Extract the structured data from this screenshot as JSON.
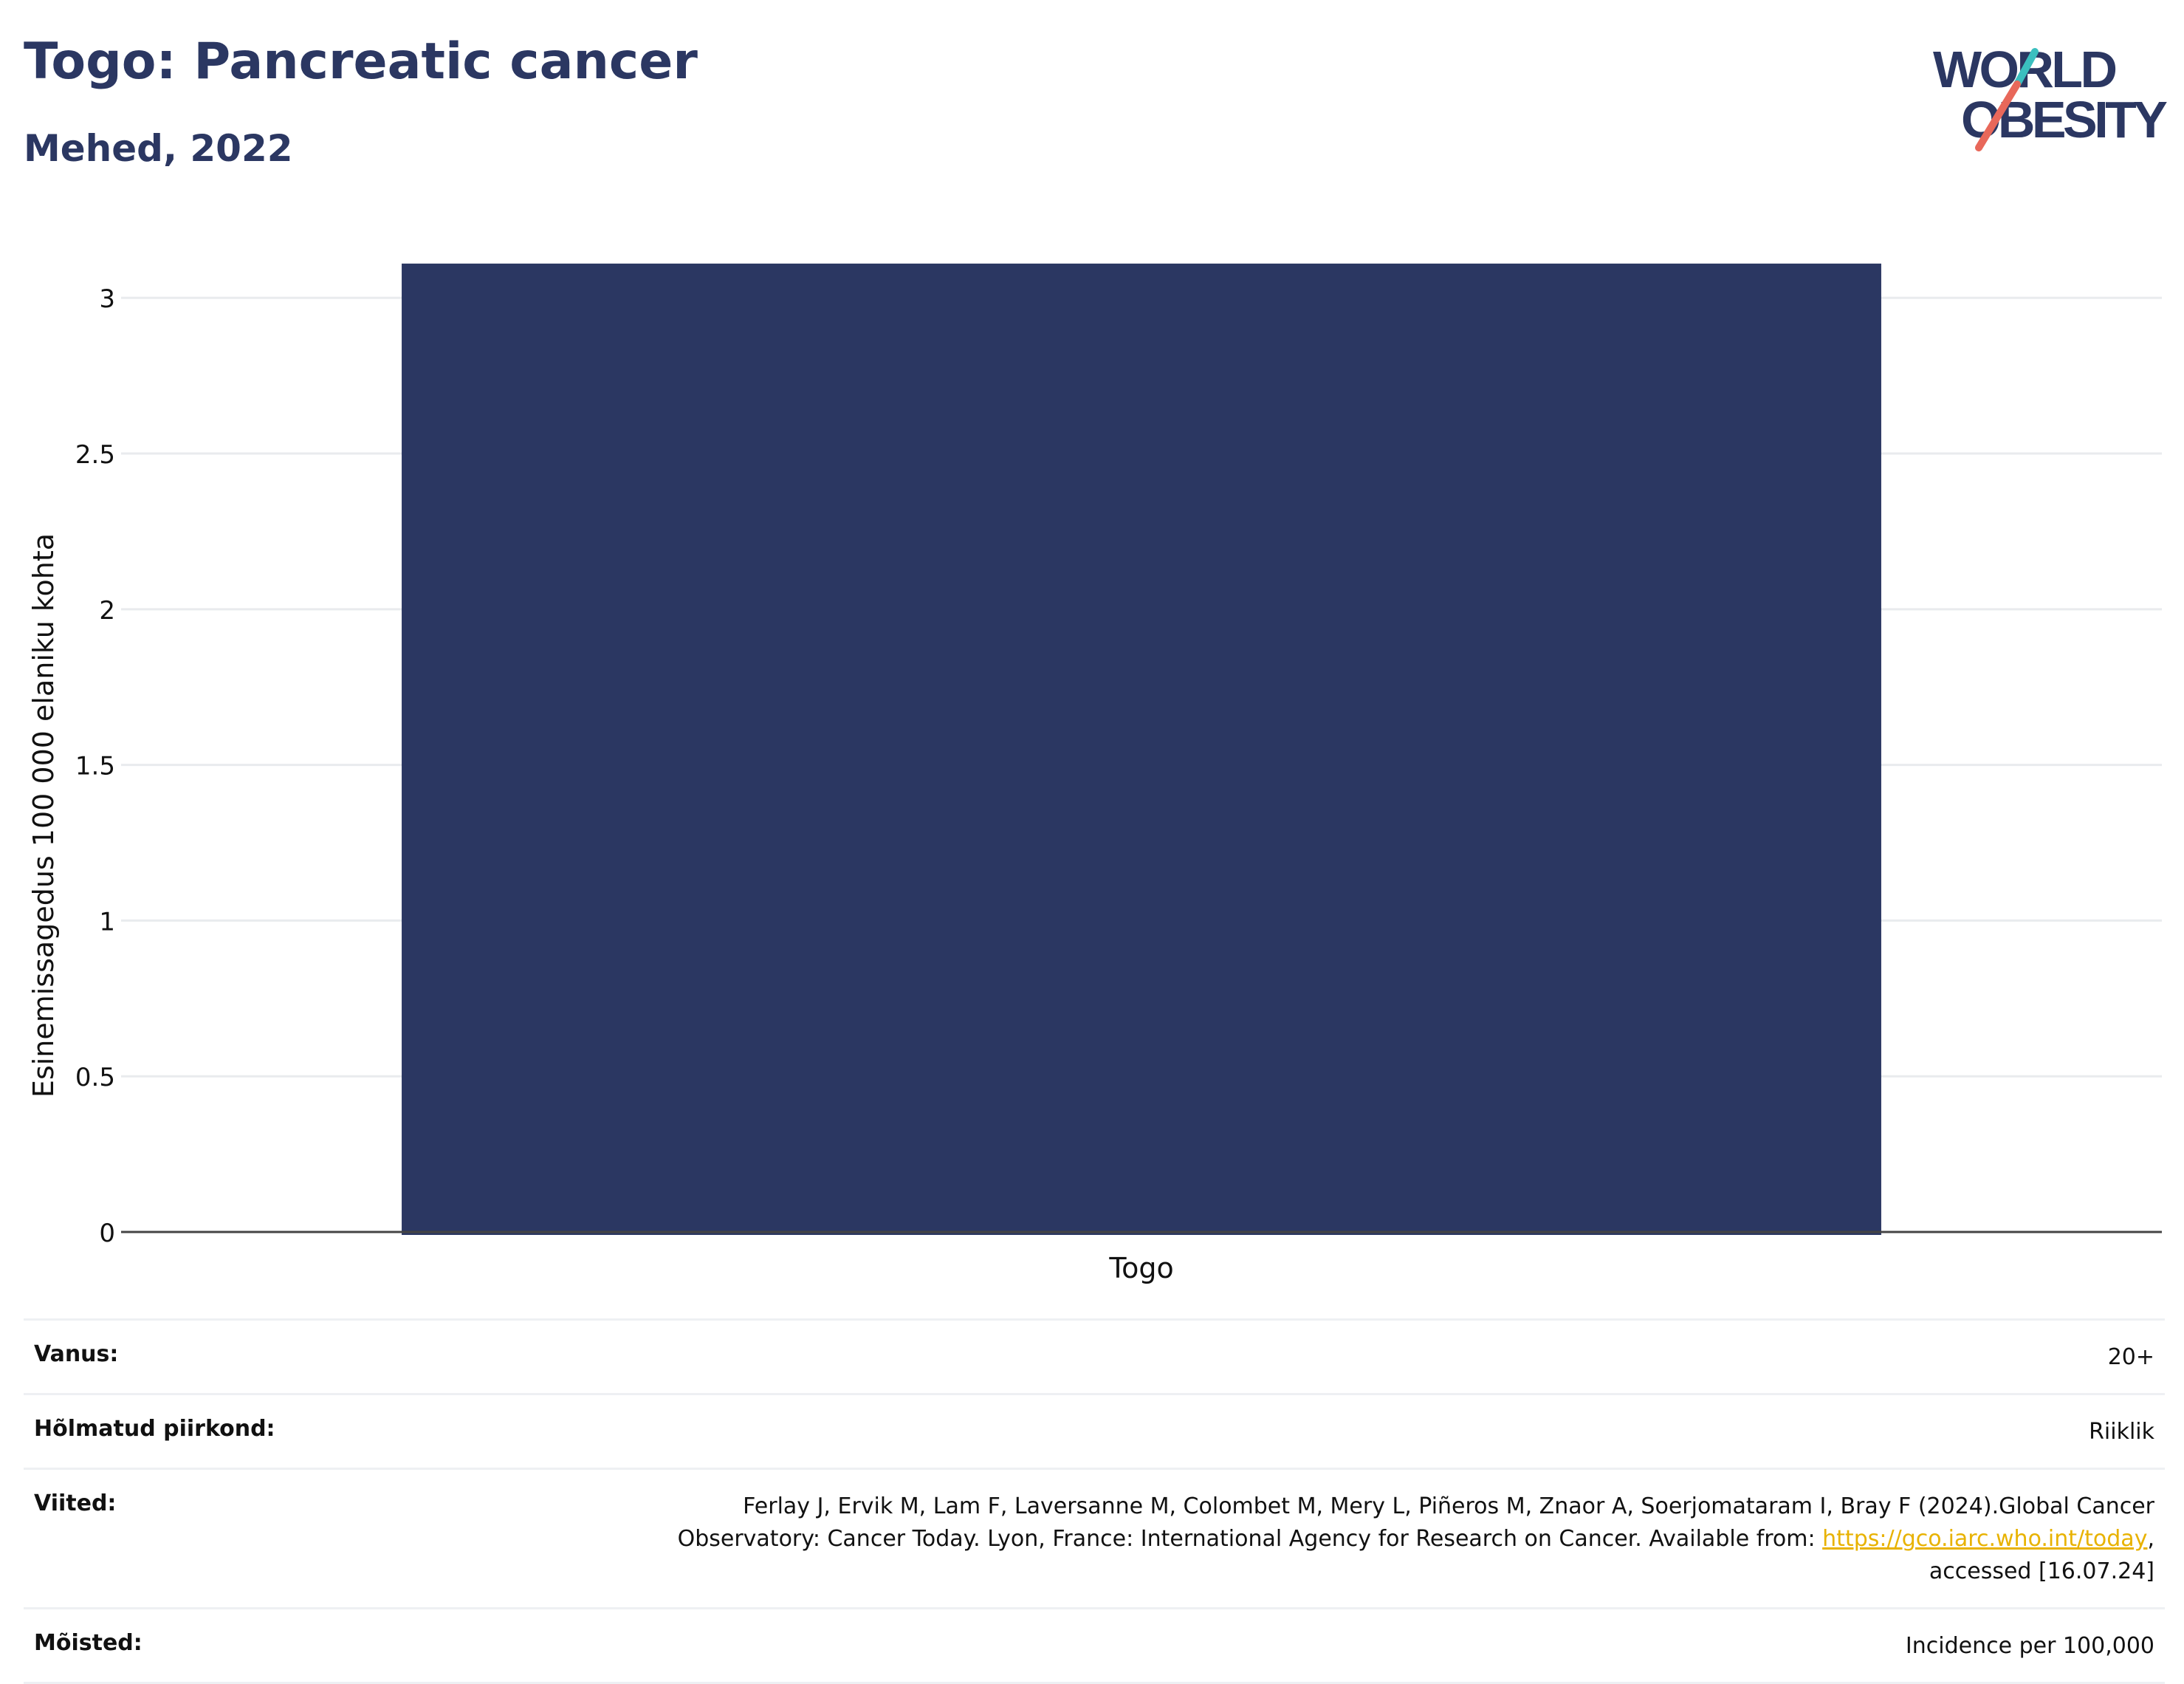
{
  "header": {
    "title": "Togo: Pancreatic cancer",
    "subtitle": "Mehed, 2022"
  },
  "logo": {
    "line1": "WORLD",
    "line2": "OBESITY",
    "colors": {
      "text": "#2b3762",
      "slash_top": "#3bbfbf",
      "slash_bottom": "#e8685a"
    }
  },
  "chart_data": {
    "type": "bar",
    "categories": [
      "Togo"
    ],
    "values": [
      3.11
    ],
    "title": "Togo: Pancreatic cancer",
    "subtitle": "Mehed, 2022",
    "xlabel": "",
    "ylabel": "Esinemissagedus 100 000 elaniku kohta",
    "ylim": [
      0,
      3.15
    ],
    "yticks": [
      0,
      0.5,
      1,
      1.5,
      2,
      2.5,
      3
    ],
    "ytick_labels": [
      "0",
      "0.5",
      "1",
      "1.5",
      "2",
      "2.5",
      "3"
    ],
    "grid": true,
    "legend": "none",
    "bar_color": "#2b3762"
  },
  "meta": {
    "age_label": "Vanus:",
    "age_value": "20+",
    "area_label": "Hõlmatud piirkond:",
    "area_value": "Riiklik",
    "refs_label": "Viited:",
    "refs_line1": "Ferlay J, Ervik M, Lam F, Laversanne M, Colombet M, Mery L, Piñeros M, Znaor A, Soerjomataram I, Bray F (2024).Global Cancer",
    "refs_line2_pre": "Observatory: Cancer Today. Lyon, France: International Agency for Research on Cancer. Available from: ",
    "refs_link": "https://gco.iarc.who.int/today",
    "refs_line2_post": ",",
    "refs_line3": "accessed [16.07.24]",
    "def_label": "Mõisted:",
    "def_value": "Incidence per 100,000"
  }
}
